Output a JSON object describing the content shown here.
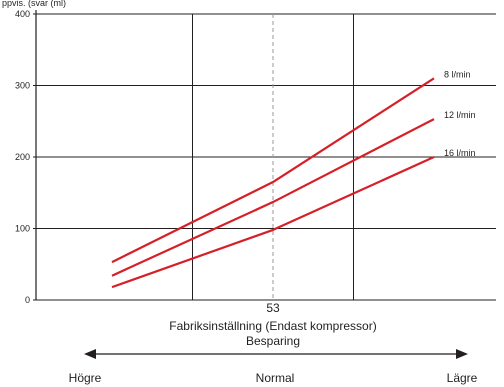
{
  "chart_data": {
    "type": "line",
    "title": "",
    "ylabel_partial": "ppvis. (svar (ml)",
    "ylim": [
      0,
      400
    ],
    "y_ticks": [
      "0",
      "100",
      "200",
      "300",
      "400"
    ],
    "grid": true,
    "x_domain": [
      0,
      4
    ],
    "x_gridlines": [
      1,
      2,
      3
    ],
    "reference_line": {
      "x": 2,
      "label": "53",
      "style": "dashed"
    },
    "series": [
      {
        "name": "8 l/min",
        "color": "#d62027",
        "points": [
          [
            0,
            53
          ],
          [
            2,
            165
          ],
          [
            4,
            310
          ]
        ]
      },
      {
        "name": "12 l/min",
        "color": "#d62027",
        "points": [
          [
            0,
            34
          ],
          [
            2,
            137
          ],
          [
            4,
            253
          ]
        ]
      },
      {
        "name": "16 l/min",
        "color": "#d62027",
        "points": [
          [
            0,
            18
          ],
          [
            2,
            98
          ],
          [
            4,
            200
          ]
        ]
      }
    ]
  },
  "captions": {
    "factory_setting": "Fabriksinställning (Endast kompressor)",
    "savings": "Besparing",
    "left": "Högre",
    "center": "Normal",
    "right": "Lägre"
  }
}
